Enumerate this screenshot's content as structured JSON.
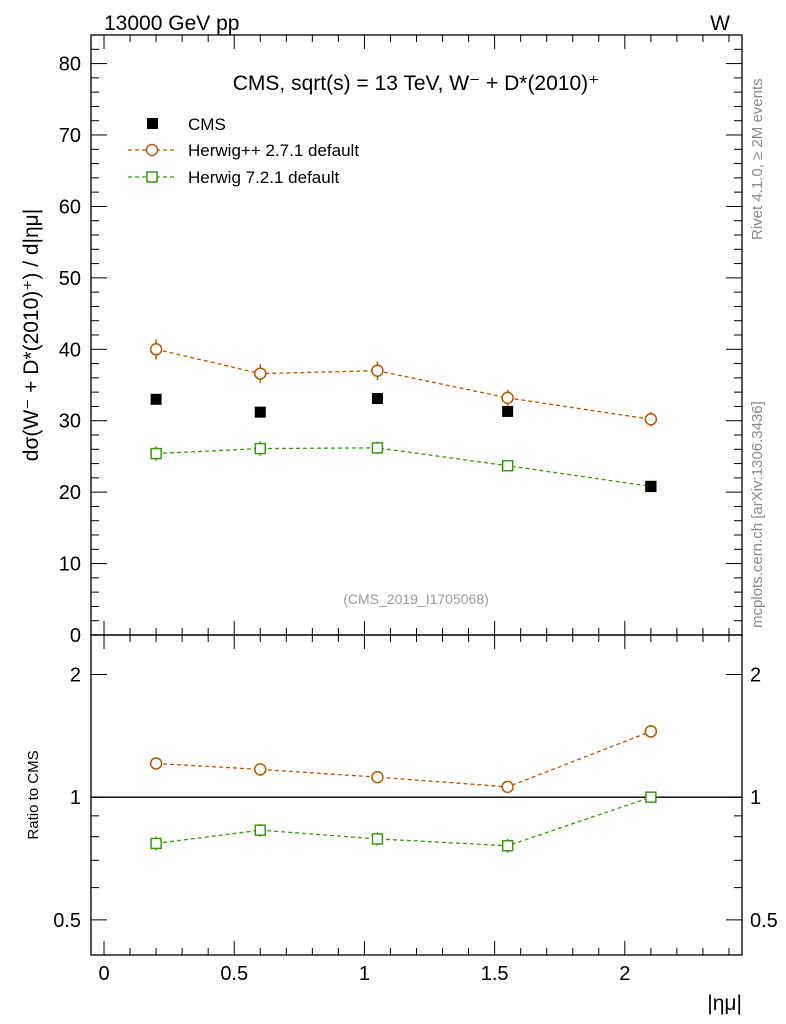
{
  "header": {
    "energy_label": "13000 GeV pp",
    "process_label": "W"
  },
  "side": {
    "rivet_label": "Rivet 4.1.0, ≥ 2M events",
    "source_label": "mcplots.cern.ch [arXiv:1306.3436]"
  },
  "chart_data": [
    {
      "type": "scatter",
      "panel": "main",
      "title": "CMS, sqrt(s) = 13 TeV, W⁻ + D*(2010)⁺",
      "analysis_id": "(CMS_2019_I1705068)",
      "xlabel": "|ημ|",
      "ylabel": "dσ(W⁻ + D*(2010)⁺) / d|ημ|",
      "xlim": [
        -0.05,
        2.45
      ],
      "ylim": [
        0,
        84
      ],
      "y_ticks": [
        "0",
        "10",
        "20",
        "30",
        "40",
        "50",
        "60",
        "70",
        "80"
      ],
      "x": [
        0.2,
        0.6,
        1.05,
        1.55,
        2.1
      ],
      "legend_position": "top-left",
      "series": [
        {
          "name": "CMS",
          "color": "#000000",
          "marker": "square-filled",
          "line": "none",
          "values": [
            33.0,
            31.2,
            33.1,
            31.3,
            20.8
          ],
          "errors": [
            0.0,
            0.0,
            0.0,
            0.0,
            0.0
          ]
        },
        {
          "name": "Herwig++ 2.7.1 default",
          "color": "#b25900",
          "marker": "circle-open",
          "line": "dashed",
          "values": [
            40.0,
            36.6,
            37.0,
            33.2,
            30.2
          ],
          "errors": [
            1.4,
            1.3,
            1.3,
            1.1,
            1.0
          ]
        },
        {
          "name": "Herwig 7.2.1 default",
          "color": "#3a9a0f",
          "marker": "square-open",
          "line": "dashed",
          "values": [
            25.4,
            26.1,
            26.2,
            23.7,
            20.8
          ],
          "errors": [
            1.0,
            1.0,
            0.9,
            0.8,
            0.6
          ]
        }
      ]
    },
    {
      "type": "scatter",
      "panel": "ratio",
      "ylabel": "Ratio to CMS",
      "xlabel": "|ημ|",
      "y_scale": "log",
      "ylim": [
        0.41,
        2.5
      ],
      "y_ticks": [
        "0.5",
        "1",
        "2"
      ],
      "x_ticks": [
        "0",
        "0.5",
        "1",
        "1.5",
        "2"
      ],
      "reference_line": 1,
      "x": [
        0.2,
        0.6,
        1.05,
        1.55,
        2.1
      ],
      "series": [
        {
          "name": "Herwig++ 2.7.1 default",
          "color": "#b25900",
          "marker": "circle-open",
          "values": [
            1.21,
            1.17,
            1.12,
            1.06,
            1.45
          ],
          "errors": [
            0.04,
            0.04,
            0.03,
            0.03,
            0.05
          ]
        },
        {
          "name": "Herwig 7.2.1 default",
          "color": "#3a9a0f",
          "marker": "square-open",
          "values": [
            0.77,
            0.83,
            0.79,
            0.76,
            1.0
          ],
          "errors": [
            0.03,
            0.03,
            0.03,
            0.03,
            0.03
          ]
        }
      ]
    }
  ]
}
